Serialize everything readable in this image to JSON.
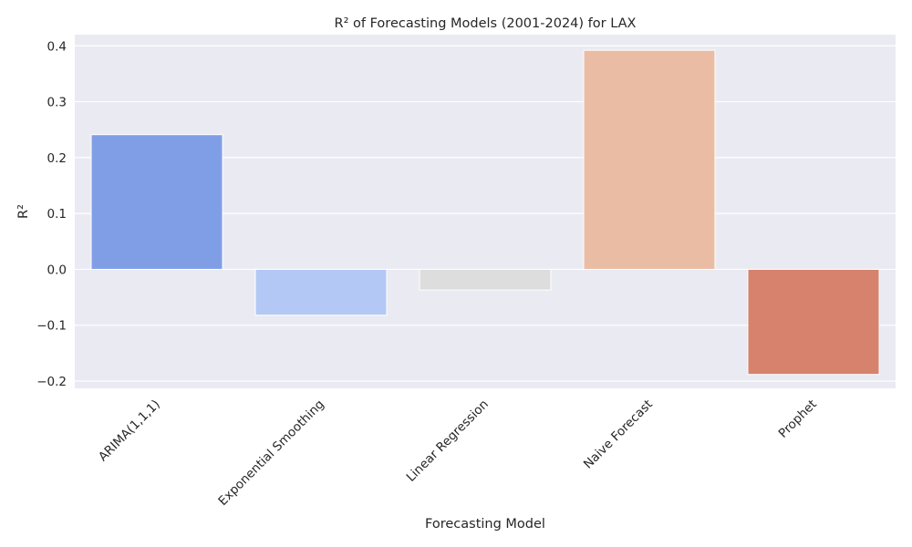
{
  "chart_data": {
    "type": "bar",
    "title": "R² of Forecasting Models (2001-2024) for LAX",
    "xlabel": "Forecasting Model",
    "ylabel": "R²",
    "categories": [
      "ARIMA(1,1,1)",
      "Exponential Smoothing",
      "Linear Regression",
      "Naive Forecast",
      "Prophet"
    ],
    "values": [
      0.241,
      -0.082,
      -0.037,
      0.392,
      -0.188
    ],
    "colors": [
      "#7f9ee6",
      "#b3c8f5",
      "#dddddd",
      "#ebbca4",
      "#d6826c"
    ],
    "ylim": [
      -0.213,
      0.42
    ],
    "yticks": [
      -0.2,
      -0.1,
      0.0,
      0.1,
      0.2,
      0.3,
      0.4
    ],
    "ytick_labels": [
      "−0.2",
      "−0.1",
      "0.0",
      "0.1",
      "0.2",
      "0.3",
      "0.4"
    ],
    "grid": true,
    "background": "#eaeaf2",
    "grid_color": "#ffffff"
  }
}
